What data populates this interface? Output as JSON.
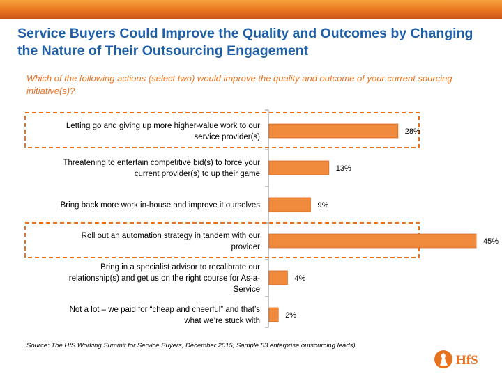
{
  "title": "Service Buyers Could Improve the Quality and Outcomes by Changing the Nature of Their Outsourcing Engagement",
  "question": "Which of the following actions (select two) would improve the quality and outcome of your current sourcing initiative(s)?",
  "source": "Source:  The HfS Working Summit for Service Buyers, December 2015; Sample 53 enterprise outsourcing leads)",
  "logo_text": "HfS",
  "colors": {
    "title": "#1f5fa8",
    "accent": "#e8731f",
    "bar": "#f08a3c",
    "bar_stroke": "#d96a22",
    "highlight_box": "#e8731f"
  },
  "chart_data": {
    "type": "bar",
    "orientation": "horizontal",
    "categories": [
      [
        "Letting go and giving up more higher-value work to our",
        "service provider(s)"
      ],
      [
        "Threatening to entertain competitive bid(s) to force your",
        "current provider(s) to up their game"
      ],
      [
        "Bring back more work in-house and improve it ourselves"
      ],
      [
        "Roll out an automation strategy in tandem with our",
        "provider"
      ],
      [
        "Bring in a specialist advisor to recalibrate our",
        "relationship(s) and get us on the right course for As-a-",
        "Service"
      ],
      [
        "Not a lot – we paid for “cheap and cheerful” and that’s",
        "what we’re stuck with"
      ]
    ],
    "values": [
      28,
      13,
      9,
      45,
      4,
      2
    ],
    "value_labels": [
      "28%",
      "13%",
      "9%",
      "45%",
      "4%",
      "2%"
    ],
    "unit": "%",
    "xlim": [
      0,
      45
    ],
    "highlighted": [
      0,
      3
    ],
    "grid": false,
    "legend": "none"
  }
}
